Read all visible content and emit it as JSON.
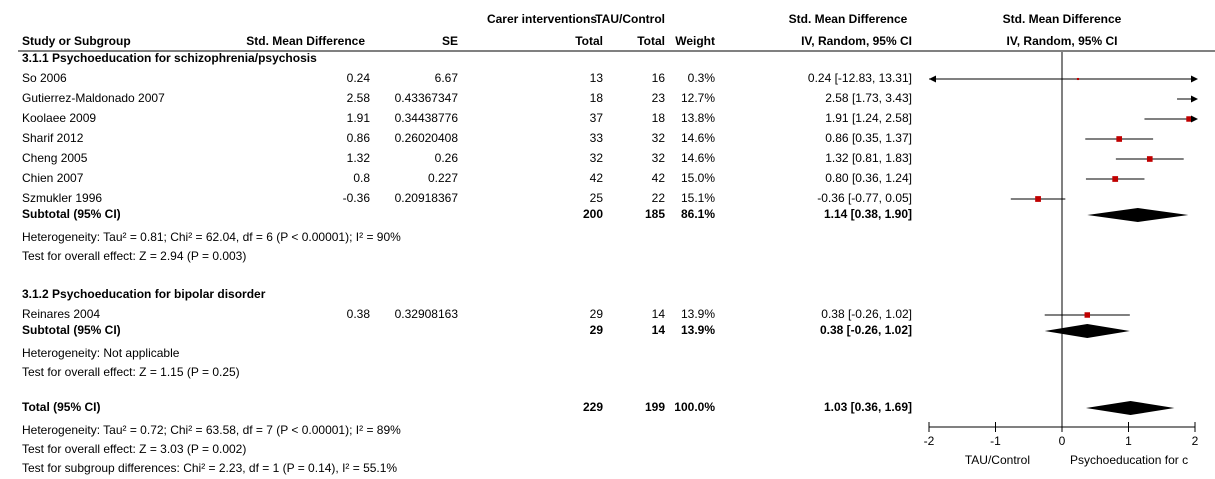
{
  "chart_data": {
    "type": "forest",
    "header": {
      "group1": "Carer interventions",
      "group2": "TAU/Control",
      "effect": "Std. Mean Difference",
      "plot_title": "Std. Mean Difference",
      "plot_method": "IV, Random, 95% CI",
      "columns": [
        "Study or Subgroup",
        "Std. Mean Difference",
        "SE",
        "Total",
        "Total",
        "Weight",
        "IV, Random, 95% CI"
      ]
    },
    "subgroups": [
      {
        "title": "3.1.1 Psychoeducation for schizophrenia/psychosis",
        "studies": [
          {
            "name": "So 2006",
            "smd": 0.24,
            "se": 6.67,
            "n1": 13,
            "n2": 16,
            "weight": 0.3,
            "weight_label": "0.3%",
            "lo": -12.83,
            "hi": 13.31,
            "ci_label": "0.24 [-12.83, 13.31]"
          },
          {
            "name": "Gutierrez-Maldonado 2007",
            "smd": 2.58,
            "se": 0.43367347,
            "n1": 18,
            "n2": 23,
            "weight": 12.7,
            "weight_label": "12.7%",
            "lo": 1.73,
            "hi": 3.43,
            "ci_label": "2.58 [1.73, 3.43]"
          },
          {
            "name": "Koolaee 2009",
            "smd": 1.91,
            "se": 0.34438776,
            "n1": 37,
            "n2": 18,
            "weight": 13.8,
            "weight_label": "13.8%",
            "lo": 1.24,
            "hi": 2.58,
            "ci_label": "1.91 [1.24, 2.58]"
          },
          {
            "name": "Sharif 2012",
            "smd": 0.86,
            "se": 0.26020408,
            "n1": 33,
            "n2": 32,
            "weight": 14.6,
            "weight_label": "14.6%",
            "lo": 0.35,
            "hi": 1.37,
            "ci_label": "0.86 [0.35, 1.37]"
          },
          {
            "name": "Cheng 2005",
            "smd": 1.32,
            "se": 0.26,
            "n1": 32,
            "n2": 32,
            "weight": 14.6,
            "weight_label": "14.6%",
            "lo": 0.81,
            "hi": 1.83,
            "ci_label": "1.32 [0.81, 1.83]"
          },
          {
            "name": "Chien 2007",
            "smd": 0.8,
            "se": 0.227,
            "n1": 42,
            "n2": 42,
            "weight": 15.0,
            "weight_label": "15.0%",
            "lo": 0.36,
            "hi": 1.24,
            "ci_label": "0.80 [0.36, 1.24]"
          },
          {
            "name": "Szmukler 1996",
            "smd": -0.36,
            "se": 0.20918367,
            "n1": 25,
            "n2": 22,
            "weight": 15.1,
            "weight_label": "15.1%",
            "lo": -0.77,
            "hi": 0.05,
            "ci_label": "-0.36 [-0.77, 0.05]"
          }
        ],
        "subtotal": {
          "name": "Subtotal (95% CI)",
          "n1": 200,
          "n2": 185,
          "weight_label": "86.1%",
          "est": 1.14,
          "lo": 0.38,
          "hi": 1.9,
          "ci_label": "1.14 [0.38, 1.90]"
        },
        "notes": [
          "Heterogeneity: Tau² = 0.81; Chi² = 62.04, df = 6 (P < 0.00001); I² = 90%",
          "Test for overall effect: Z = 2.94 (P = 0.003)"
        ]
      },
      {
        "title": "3.1.2 Psychoeducation for bipolar disorder",
        "studies": [
          {
            "name": "Reinares 2004",
            "smd": 0.38,
            "se": 0.32908163,
            "n1": 29,
            "n2": 14,
            "weight": 13.9,
            "weight_label": "13.9%",
            "lo": -0.26,
            "hi": 1.02,
            "ci_label": "0.38 [-0.26, 1.02]"
          }
        ],
        "subtotal": {
          "name": "Subtotal (95% CI)",
          "n1": 29,
          "n2": 14,
          "weight_label": "13.9%",
          "est": 0.38,
          "lo": -0.26,
          "hi": 1.02,
          "ci_label": "0.38 [-0.26, 1.02]"
        },
        "notes": [
          "Heterogeneity: Not applicable",
          "Test for overall effect: Z = 1.15 (P = 0.25)"
        ]
      }
    ],
    "total": {
      "name": "Total (95% CI)",
      "n1": 229,
      "n2": 199,
      "weight_label": "100.0%",
      "est": 1.03,
      "lo": 0.36,
      "hi": 1.69,
      "ci_label": "1.03 [0.36, 1.69]"
    },
    "total_notes": [
      "Heterogeneity: Tau² = 0.72; Chi² = 63.58, df = 7 (P < 0.00001); I² = 89%",
      "Test for overall effect: Z = 3.03 (P = 0.002)",
      "Test for subgroup differences: Chi² = 2.23, df = 1 (P = 0.14), I² = 55.1%"
    ],
    "xlim": [
      -2,
      2
    ],
    "xticks": [
      -2,
      -1,
      0,
      1,
      2
    ],
    "xlabels": [
      "TAU/Control",
      "Psychoeducation for c"
    ],
    "marker_color": "#c00000"
  }
}
